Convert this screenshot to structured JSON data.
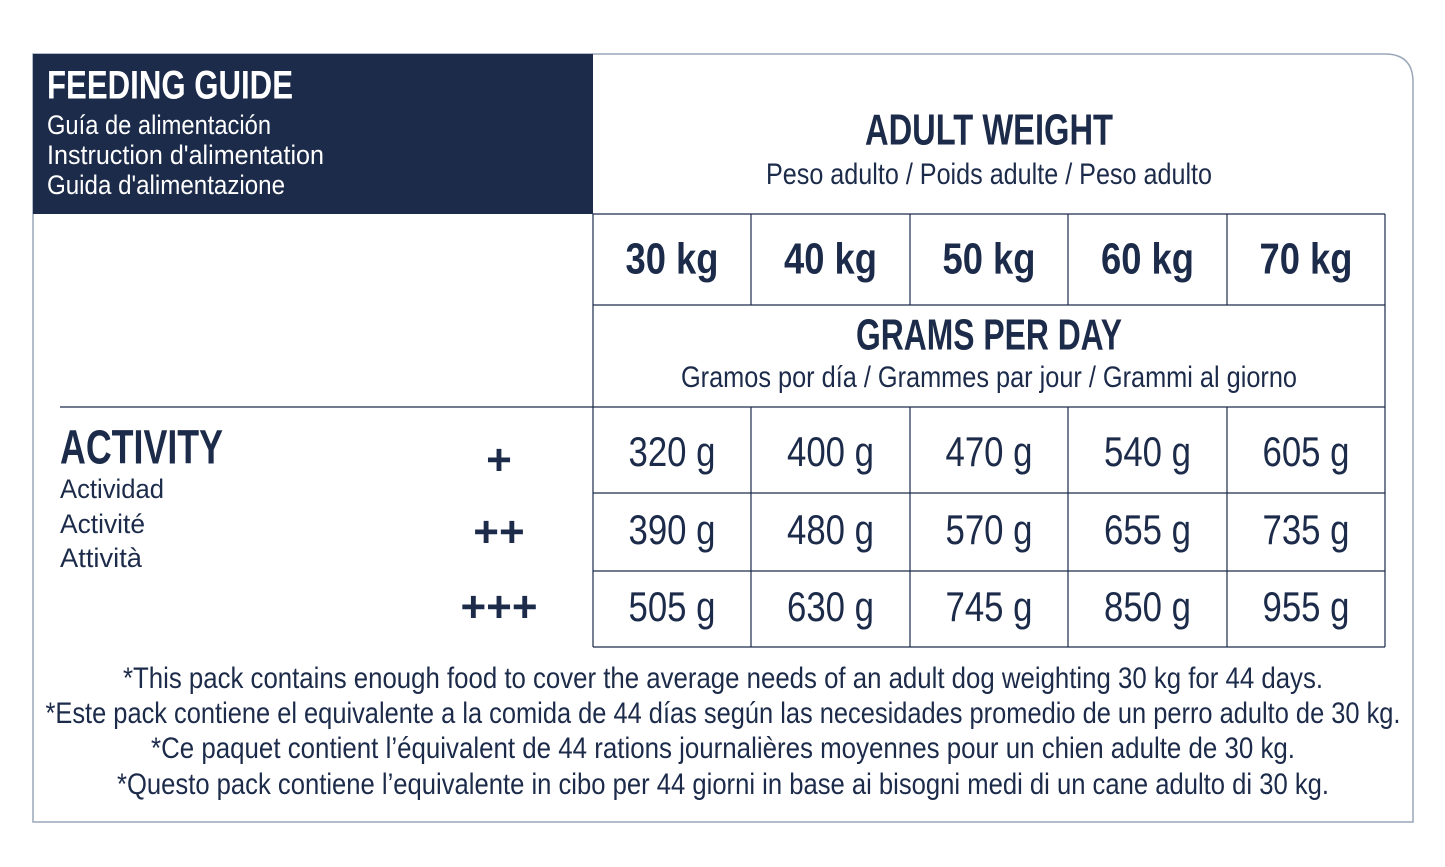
{
  "header": {
    "title": "FEEDING GUIDE",
    "subtitles": [
      "Guía de alimentación",
      "Instruction d'alimentation",
      "Guida d'alimentazione"
    ]
  },
  "adult_weight": {
    "title": "ADULT WEIGHT",
    "subtitle": "Peso adulto / Poids adulte / Peso adulto"
  },
  "weights": [
    "30 kg",
    "40 kg",
    "50 kg",
    "60 kg",
    "70 kg"
  ],
  "grams_per_day": {
    "title": "GRAMS PER DAY",
    "subtitle": "Gramos por día / Grammes par jour / Grammi al giorno"
  },
  "activity": {
    "title": "ACTIVITY",
    "subtitles": [
      "Actividad",
      "Activité",
      "Attività"
    ]
  },
  "rows": [
    {
      "level": "+",
      "values": [
        "320 g",
        "400 g",
        "470 g",
        "540 g",
        "605 g"
      ]
    },
    {
      "level": "++",
      "values": [
        "390 g",
        "480 g",
        "570 g",
        "655 g",
        "735 g"
      ]
    },
    {
      "level": "+++",
      "values": [
        "505 g",
        "630 g",
        "745 g",
        "850 g",
        "955 g"
      ]
    }
  ],
  "notes": [
    "*This pack contains enough food to cover the average needs of an adult dog weighting 30 kg for 44 days.",
    "*Este pack contiene el equivalente a la comida de 44 días según las necesidades promedio de un perro adulto de 30 kg.",
    "*Ce paquet contient l’équivalent de 44 rations journalières moyennes pour un chien adulte de 30 kg.",
    "*Questo pack contiene l’equivalente in cibo per 44 giorni in base ai bisogni medi di un cane adulto di 30 kg."
  ]
}
